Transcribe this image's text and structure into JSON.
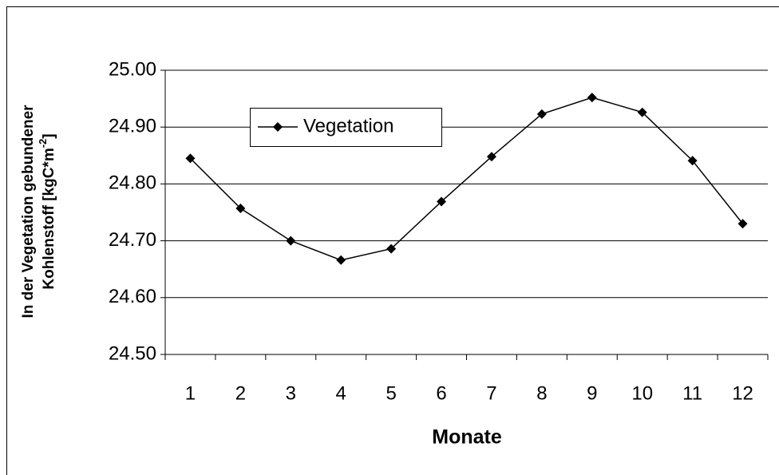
{
  "chart_data": {
    "type": "line",
    "categories": [
      "1",
      "2",
      "3",
      "4",
      "5",
      "6",
      "7",
      "8",
      "9",
      "10",
      "11",
      "12"
    ],
    "series": [
      {
        "name": "Vegetation",
        "color": "#000000",
        "values": [
          24.845,
          24.757,
          24.7,
          24.666,
          24.686,
          24.769,
          24.848,
          24.923,
          24.952,
          24.926,
          24.841,
          24.73
        ]
      }
    ],
    "ylim": [
      24.5,
      25.0
    ],
    "yticks": [
      {
        "value": 24.5,
        "label": "24.50"
      },
      {
        "value": 24.6,
        "label": "24.60"
      },
      {
        "value": 24.7,
        "label": "24.70"
      },
      {
        "value": 24.8,
        "label": "24.80"
      },
      {
        "value": 24.9,
        "label": "24.90"
      },
      {
        "value": 25.0,
        "label": "25.00"
      }
    ],
    "grid": true,
    "x_label": "Monate",
    "y_label": [
      "In der Vegetation gebundener",
      [
        "Kohlenstoff [kgC*m",
        "-2",
        "]"
      ]
    ]
  }
}
